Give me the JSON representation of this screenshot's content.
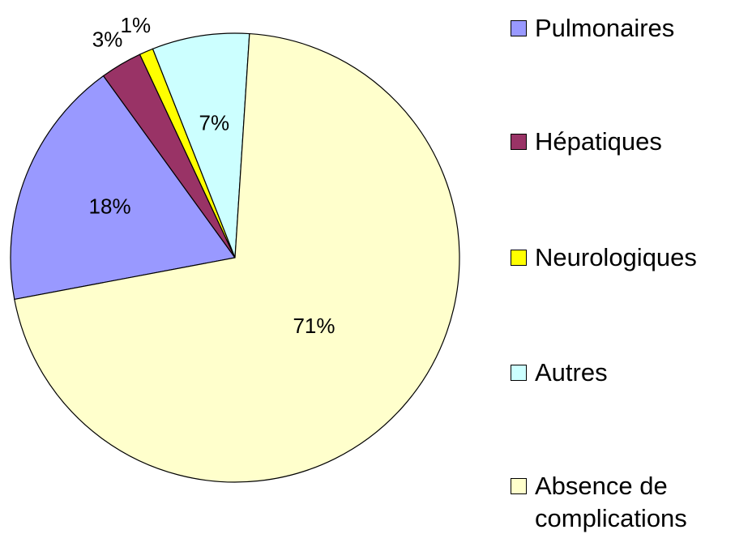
{
  "chart_data": {
    "type": "pie",
    "categories": [
      "Pulmonaires",
      "Hépatiques",
      "Neurologiques",
      "Autres",
      "Absence de complications"
    ],
    "values": [
      18,
      3,
      1,
      7,
      71
    ],
    "value_labels": [
      "18%",
      "3%",
      "1%",
      "7%",
      "71%"
    ],
    "colors": [
      "#9999ff",
      "#993366",
      "#ffff00",
      "#ccffff",
      "#ffffcc"
    ],
    "legend": "right"
  }
}
